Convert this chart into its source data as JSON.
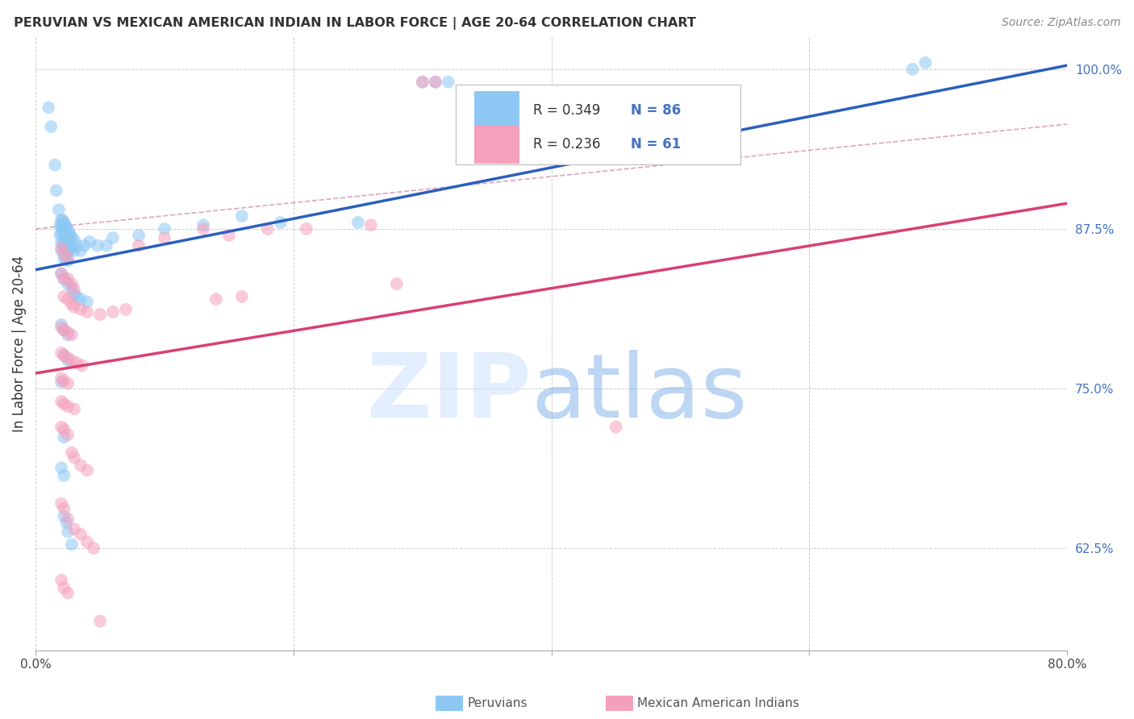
{
  "title": "PERUVIAN VS MEXICAN AMERICAN INDIAN IN LABOR FORCE | AGE 20-64 CORRELATION CHART",
  "source": "Source: ZipAtlas.com",
  "ylabel": "In Labor Force | Age 20-64",
  "x_min": 0.0,
  "x_max": 0.8,
  "y_min": 0.545,
  "y_max": 1.025,
  "y_ticks": [
    0.625,
    0.75,
    0.875,
    1.0
  ],
  "y_tick_labels": [
    "62.5%",
    "75.0%",
    "87.5%",
    "100.0%"
  ],
  "blue_color": "#8DC8F5",
  "pink_color": "#F5A0BC",
  "blue_line_color": "#2B5FBF",
  "pink_line_color": "#D94070",
  "blue_line_x0": 0.0,
  "blue_line_y0": 0.843,
  "blue_line_x1": 0.8,
  "blue_line_y1": 1.003,
  "pink_line_x0": 0.0,
  "pink_line_y0": 0.762,
  "pink_line_x1": 0.8,
  "pink_line_y1": 0.895,
  "dash_line_x0": 0.0,
  "dash_line_y0": 0.875,
  "dash_line_x1": 0.8,
  "dash_line_y1": 0.957,
  "legend_r_blue": "0.349",
  "legend_n_blue": "86",
  "legend_r_pink": "0.236",
  "legend_n_pink": "61",
  "blue_scatter": [
    [
      0.01,
      0.97
    ],
    [
      0.012,
      0.955
    ],
    [
      0.015,
      0.925
    ],
    [
      0.016,
      0.905
    ],
    [
      0.018,
      0.89
    ],
    [
      0.019,
      0.878
    ],
    [
      0.019,
      0.87
    ],
    [
      0.02,
      0.882
    ],
    [
      0.02,
      0.876
    ],
    [
      0.02,
      0.872
    ],
    [
      0.02,
      0.864
    ],
    [
      0.02,
      0.858
    ],
    [
      0.021,
      0.882
    ],
    [
      0.021,
      0.876
    ],
    [
      0.022,
      0.88
    ],
    [
      0.022,
      0.875
    ],
    [
      0.022,
      0.87
    ],
    [
      0.022,
      0.864
    ],
    [
      0.022,
      0.858
    ],
    [
      0.022,
      0.852
    ],
    [
      0.023,
      0.878
    ],
    [
      0.023,
      0.872
    ],
    [
      0.023,
      0.865
    ],
    [
      0.023,
      0.858
    ],
    [
      0.023,
      0.852
    ],
    [
      0.024,
      0.876
    ],
    [
      0.024,
      0.87
    ],
    [
      0.024,
      0.864
    ],
    [
      0.025,
      0.875
    ],
    [
      0.025,
      0.868
    ],
    [
      0.025,
      0.862
    ],
    [
      0.025,
      0.858
    ],
    [
      0.025,
      0.85
    ],
    [
      0.026,
      0.872
    ],
    [
      0.026,
      0.865
    ],
    [
      0.026,
      0.858
    ],
    [
      0.027,
      0.87
    ],
    [
      0.027,
      0.862
    ],
    [
      0.028,
      0.868
    ],
    [
      0.028,
      0.86
    ],
    [
      0.03,
      0.866
    ],
    [
      0.03,
      0.858
    ],
    [
      0.032,
      0.862
    ],
    [
      0.035,
      0.858
    ],
    [
      0.038,
      0.862
    ],
    [
      0.042,
      0.865
    ],
    [
      0.048,
      0.862
    ],
    [
      0.055,
      0.862
    ],
    [
      0.02,
      0.84
    ],
    [
      0.022,
      0.836
    ],
    [
      0.025,
      0.832
    ],
    [
      0.028,
      0.828
    ],
    [
      0.03,
      0.824
    ],
    [
      0.032,
      0.822
    ],
    [
      0.035,
      0.82
    ],
    [
      0.04,
      0.818
    ],
    [
      0.02,
      0.8
    ],
    [
      0.022,
      0.796
    ],
    [
      0.025,
      0.792
    ],
    [
      0.022,
      0.776
    ],
    [
      0.025,
      0.772
    ],
    [
      0.02,
      0.755
    ],
    [
      0.022,
      0.712
    ],
    [
      0.02,
      0.688
    ],
    [
      0.022,
      0.682
    ],
    [
      0.022,
      0.65
    ],
    [
      0.024,
      0.645
    ],
    [
      0.025,
      0.638
    ],
    [
      0.028,
      0.628
    ],
    [
      0.06,
      0.868
    ],
    [
      0.08,
      0.87
    ],
    [
      0.1,
      0.875
    ],
    [
      0.13,
      0.878
    ],
    [
      0.16,
      0.885
    ],
    [
      0.19,
      0.88
    ],
    [
      0.25,
      0.88
    ],
    [
      0.3,
      0.99
    ],
    [
      0.31,
      0.99
    ],
    [
      0.32,
      0.99
    ],
    [
      0.68,
      1.0
    ],
    [
      0.69,
      1.005
    ]
  ],
  "pink_scatter": [
    [
      0.02,
      0.86
    ],
    [
      0.022,
      0.856
    ],
    [
      0.025,
      0.852
    ],
    [
      0.02,
      0.84
    ],
    [
      0.022,
      0.836
    ],
    [
      0.025,
      0.836
    ],
    [
      0.028,
      0.832
    ],
    [
      0.03,
      0.828
    ],
    [
      0.022,
      0.822
    ],
    [
      0.025,
      0.82
    ],
    [
      0.028,
      0.816
    ],
    [
      0.03,
      0.814
    ],
    [
      0.035,
      0.812
    ],
    [
      0.04,
      0.81
    ],
    [
      0.05,
      0.808
    ],
    [
      0.06,
      0.81
    ],
    [
      0.07,
      0.812
    ],
    [
      0.02,
      0.798
    ],
    [
      0.022,
      0.796
    ],
    [
      0.025,
      0.794
    ],
    [
      0.028,
      0.792
    ],
    [
      0.02,
      0.778
    ],
    [
      0.022,
      0.776
    ],
    [
      0.025,
      0.774
    ],
    [
      0.028,
      0.772
    ],
    [
      0.032,
      0.77
    ],
    [
      0.036,
      0.768
    ],
    [
      0.02,
      0.758
    ],
    [
      0.022,
      0.756
    ],
    [
      0.025,
      0.754
    ],
    [
      0.02,
      0.74
    ],
    [
      0.022,
      0.738
    ],
    [
      0.025,
      0.736
    ],
    [
      0.03,
      0.734
    ],
    [
      0.02,
      0.72
    ],
    [
      0.022,
      0.718
    ],
    [
      0.025,
      0.714
    ],
    [
      0.028,
      0.7
    ],
    [
      0.03,
      0.696
    ],
    [
      0.035,
      0.69
    ],
    [
      0.04,
      0.686
    ],
    [
      0.02,
      0.66
    ],
    [
      0.022,
      0.656
    ],
    [
      0.025,
      0.648
    ],
    [
      0.03,
      0.64
    ],
    [
      0.035,
      0.636
    ],
    [
      0.04,
      0.63
    ],
    [
      0.045,
      0.625
    ],
    [
      0.02,
      0.6
    ],
    [
      0.022,
      0.594
    ],
    [
      0.025,
      0.59
    ],
    [
      0.08,
      0.862
    ],
    [
      0.1,
      0.868
    ],
    [
      0.13,
      0.875
    ],
    [
      0.15,
      0.87
    ],
    [
      0.18,
      0.875
    ],
    [
      0.21,
      0.875
    ],
    [
      0.26,
      0.878
    ],
    [
      0.3,
      0.99
    ],
    [
      0.31,
      0.99
    ],
    [
      0.45,
      0.72
    ],
    [
      0.14,
      0.82
    ],
    [
      0.16,
      0.822
    ],
    [
      0.28,
      0.832
    ],
    [
      0.05,
      0.568
    ]
  ]
}
